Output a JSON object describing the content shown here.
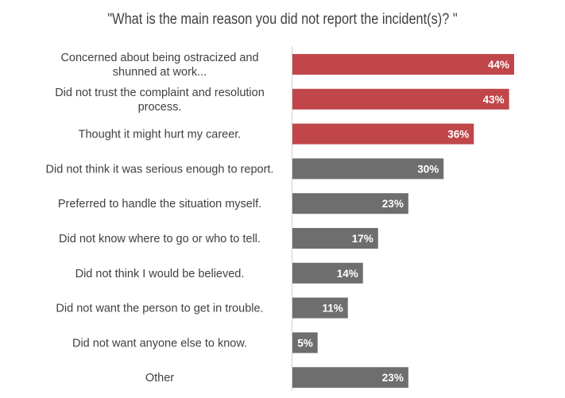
{
  "chart_data": {
    "type": "bar",
    "orientation": "horizontal",
    "title": "\"What is the main reason you did not report the incident(s)? \"",
    "xlabel": "",
    "ylabel": "",
    "xlim": [
      0,
      44
    ],
    "grid": false,
    "legend": "none",
    "categories": [
      [
        "Concerned about being ostracized and",
        "shunned at work..."
      ],
      [
        "Did not trust the complaint and resolution",
        "process."
      ],
      [
        "Thought it might hurt my career."
      ],
      [
        "Did not think it was serious enough to report."
      ],
      [
        "Preferred to handle the situation myself."
      ],
      [
        "Did not know where to go or who to tell."
      ],
      [
        "Did not think I would be believed."
      ],
      [
        "Did not want the person to get in trouble."
      ],
      [
        "Did not want anyone else to know."
      ],
      [
        "Other"
      ]
    ],
    "values": [
      44,
      43,
      36,
      30,
      23,
      17,
      14,
      11,
      5,
      23
    ],
    "value_labels": [
      "44%",
      "43%",
      "36%",
      "30%",
      "23%",
      "17%",
      "14%",
      "11%",
      "5%",
      "23%"
    ],
    "highlight_count": 3,
    "colors": {
      "highlight": "#c0464a",
      "default": "#6e6e6e",
      "axis": "#d0d0d0",
      "label": "#404040"
    }
  }
}
